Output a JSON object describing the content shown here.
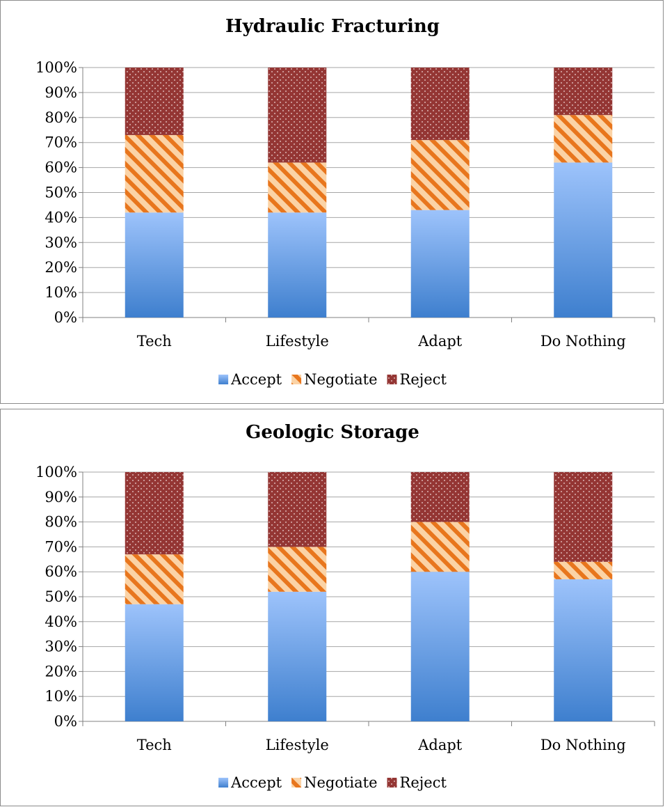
{
  "colors": {
    "accept_top": "#9dc3fb",
    "accept_bottom": "#3e7fce",
    "negotiate_bg": "#fbd3a6",
    "negotiate_stripe": "#e8761d",
    "reject_bg": "#943634",
    "reject_dot": "#f2dcdb",
    "gridline": "#a6a6a6",
    "axis": "#808080"
  },
  "chart_data": [
    {
      "type": "bar",
      "stacked": "percent",
      "title": "Hydraulic Fracturing",
      "categories": [
        "Tech",
        "Lifestyle",
        "Adapt",
        "Do Nothing"
      ],
      "series": [
        {
          "name": "Accept",
          "values": [
            42,
            42,
            43,
            62
          ]
        },
        {
          "name": "Negotiate",
          "values": [
            31,
            20,
            28,
            19
          ]
        },
        {
          "name": "Reject",
          "values": [
            27,
            38,
            29,
            19
          ]
        }
      ],
      "ylim": [
        0,
        100
      ],
      "yticks": [
        "0%",
        "10%",
        "20%",
        "30%",
        "40%",
        "50%",
        "60%",
        "70%",
        "80%",
        "90%",
        "100%"
      ],
      "grid": true,
      "legend": "bottom"
    },
    {
      "type": "bar",
      "stacked": "percent",
      "title": "Geologic Storage",
      "categories": [
        "Tech",
        "Lifestyle",
        "Adapt",
        "Do Nothing"
      ],
      "series": [
        {
          "name": "Accept",
          "values": [
            47,
            52,
            60,
            57
          ]
        },
        {
          "name": "Negotiate",
          "values": [
            20,
            18,
            20,
            7
          ]
        },
        {
          "name": "Reject",
          "values": [
            33,
            30,
            20,
            36
          ]
        }
      ],
      "ylim": [
        0,
        100
      ],
      "yticks": [
        "0%",
        "10%",
        "20%",
        "30%",
        "40%",
        "50%",
        "60%",
        "70%",
        "80%",
        "90%",
        "100%"
      ],
      "grid": true,
      "legend": "bottom"
    }
  ]
}
